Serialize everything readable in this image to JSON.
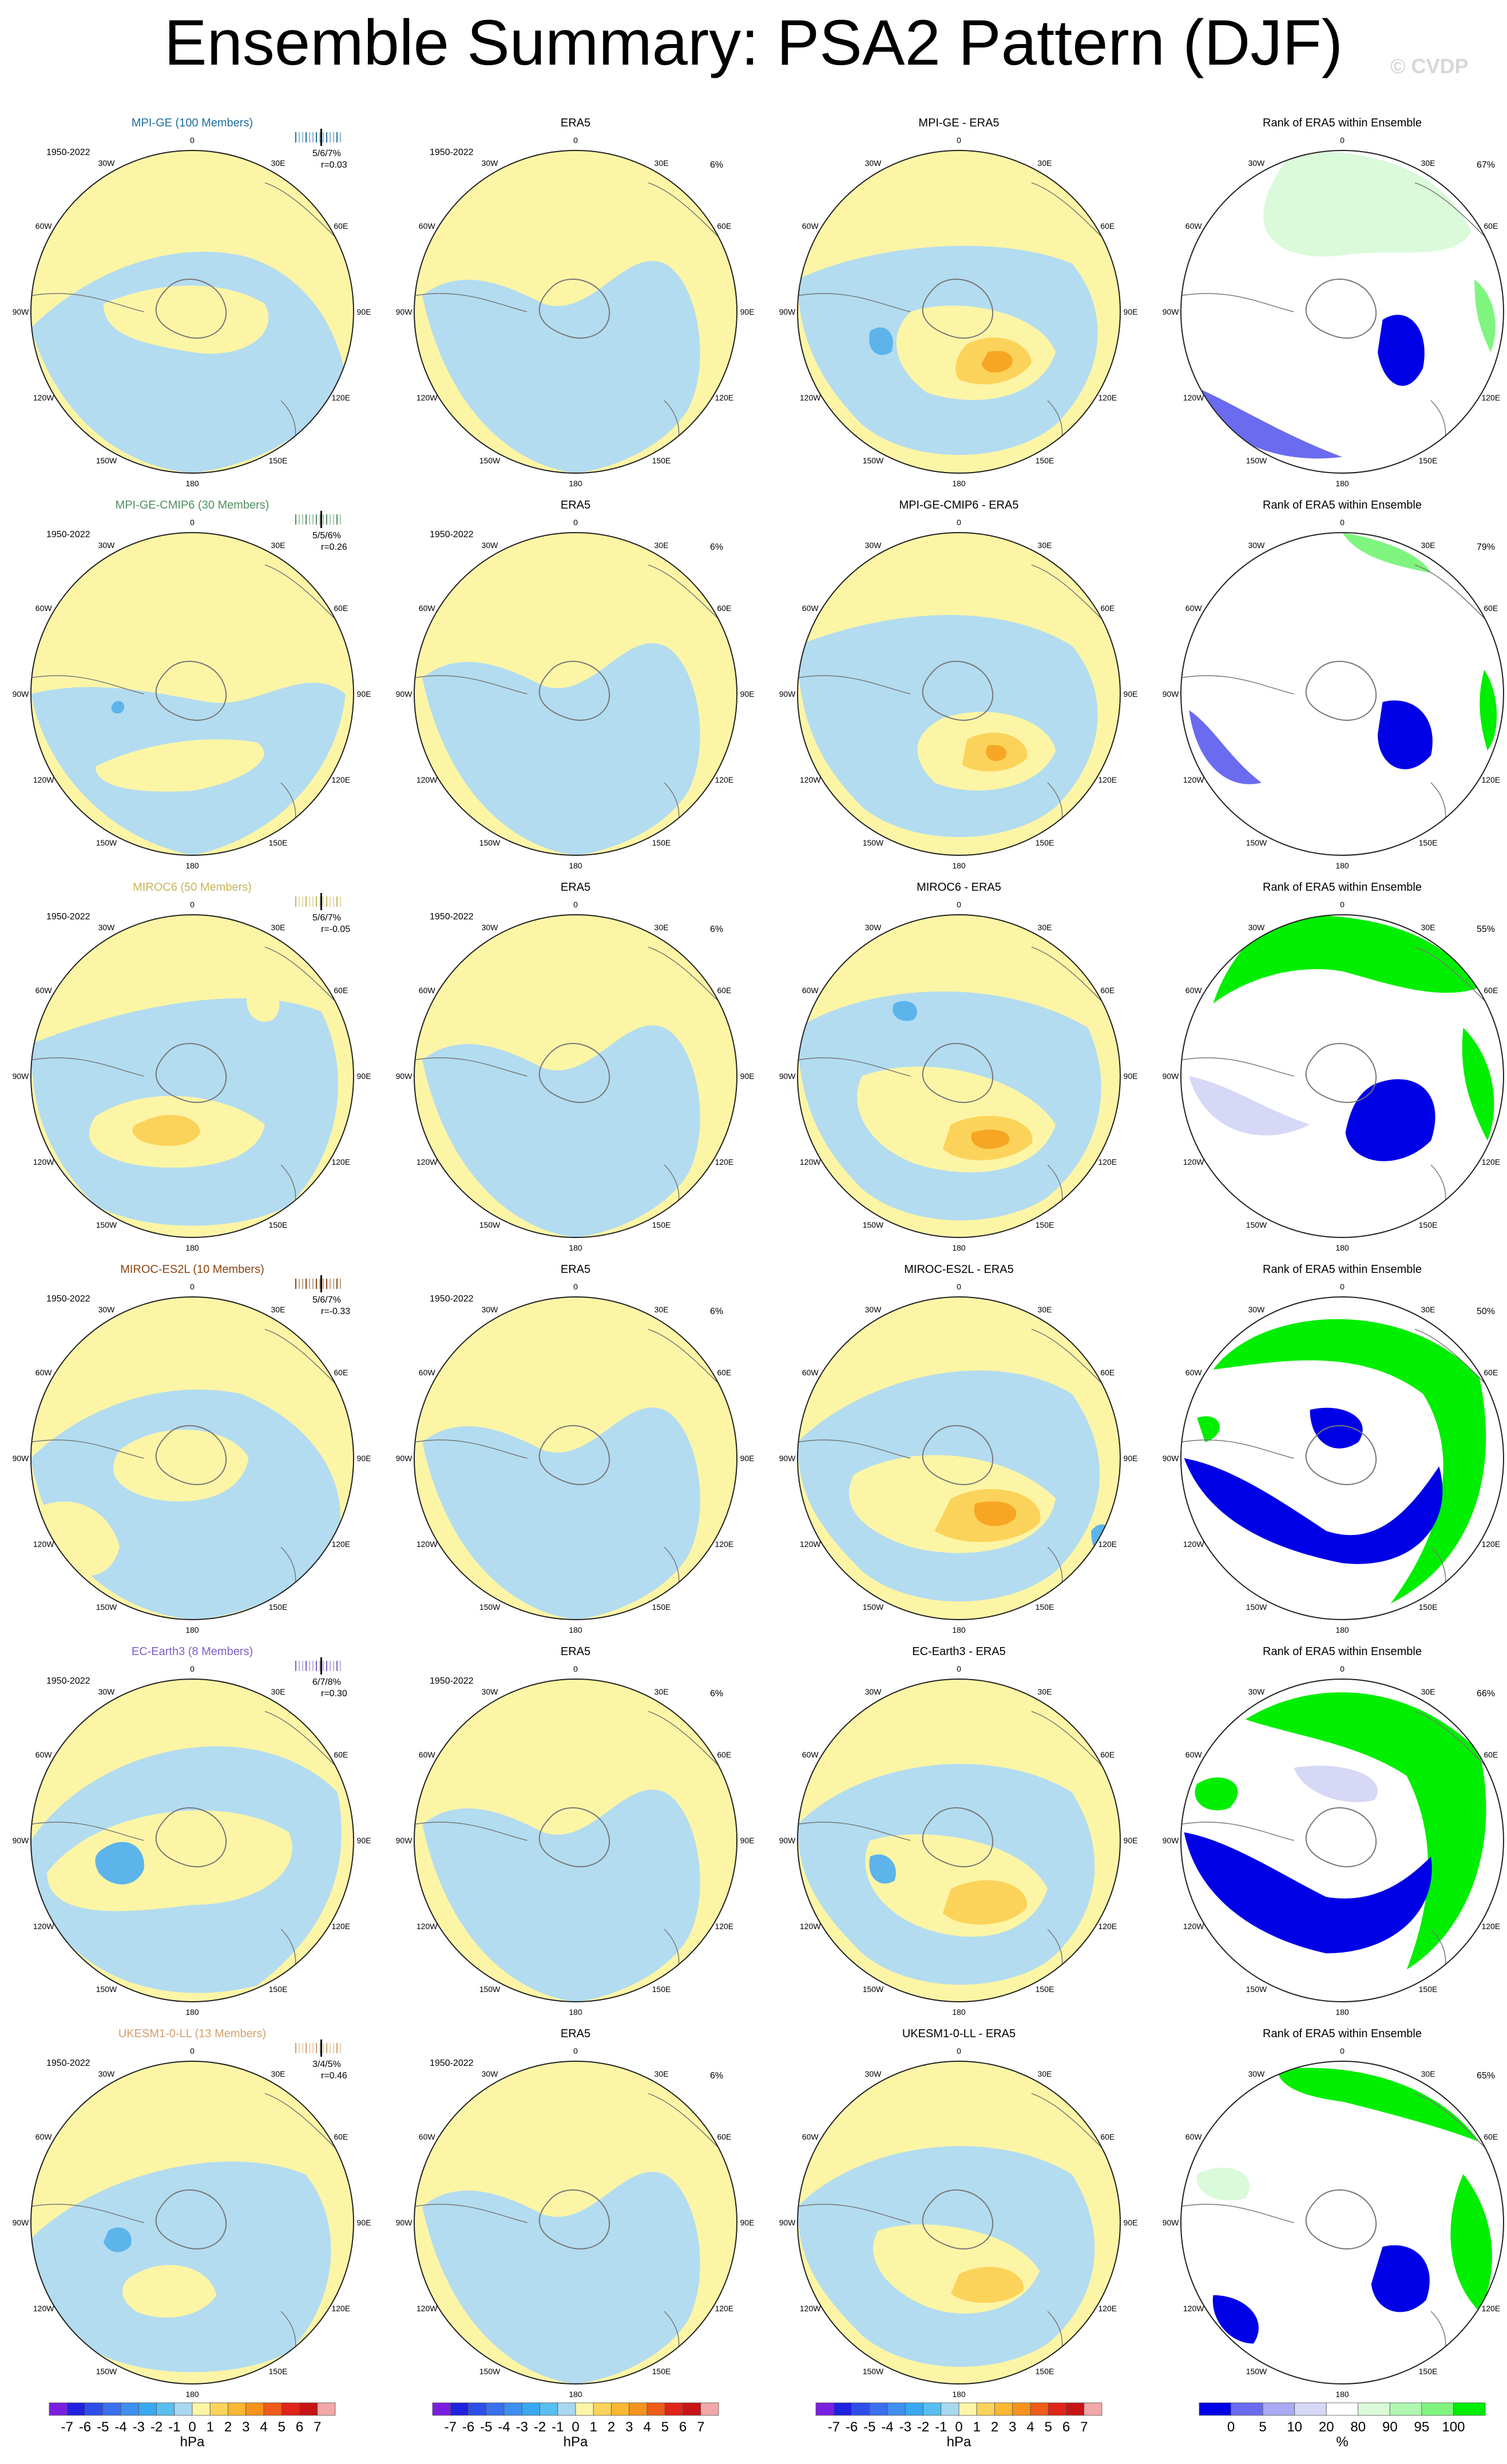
{
  "title": "Ensemble Summary: PSA2 Pattern (DJF)",
  "watermark": "© CVDP",
  "period": "1950-2022",
  "lon_labels": [
    "0",
    "30E",
    "60E",
    "90E",
    "120E",
    "150E",
    "180",
    "150W",
    "120W",
    "90W",
    "60W",
    "30W"
  ],
  "rows": [
    {
      "model": "MPI-GE (100 Members)",
      "color": "#1f6ea1",
      "pct_ens": "5/6/7%",
      "corr": "r=0.03",
      "diff_title": "MPI-GE - ERA5",
      "rank_pct": "67%",
      "ens": "m1",
      "diff": "d1",
      "rank": "k1"
    },
    {
      "model": "MPI-GE-CMIP6 (30 Members)",
      "color": "#4f8f5f",
      "pct_ens": "5/5/6%",
      "corr": "r=0.26",
      "diff_title": "MPI-GE-CMIP6 - ERA5",
      "rank_pct": "79%",
      "ens": "m2",
      "diff": "d2",
      "rank": "k2"
    },
    {
      "model": "MIROC6 (50 Members)",
      "color": "#c8b45a",
      "pct_ens": "5/6/7%",
      "corr": "r=-0.05",
      "diff_title": "MIROC6 - ERA5",
      "rank_pct": "55%",
      "ens": "m3",
      "diff": "d3",
      "rank": "k3"
    },
    {
      "model": "MIROC-ES2L (10 Members)",
      "color": "#8b4513",
      "pct_ens": "5/6/7%",
      "corr": "r=-0.33",
      "diff_title": "MIROC-ES2L - ERA5",
      "rank_pct": "50%",
      "ens": "m4",
      "diff": "d4",
      "rank": "k4"
    },
    {
      "model": "EC-Earth3 (8 Members)",
      "color": "#7b5fc8",
      "pct_ens": "6/7/8%",
      "corr": "r=0.30",
      "diff_title": "EC-Earth3 - ERA5",
      "rank_pct": "66%",
      "ens": "m5",
      "diff": "d5",
      "rank": "k5"
    },
    {
      "model": "UKESM1-0-LL (13 Members)",
      "color": "#d2a06e",
      "pct_ens": "3/4/5%",
      "corr": "r=0.46",
      "diff_title": "UKESM1-0-LL - ERA5",
      "rank_pct": "65%",
      "ens": "m6",
      "diff": "d6",
      "rank": "k6"
    }
  ],
  "era5": {
    "title": "ERA5",
    "pct": "6%"
  },
  "rank_title": "Rank of ERA5 within Ensemble",
  "colors": {
    "ocean_pos": "#fdf5a6",
    "ocean_neg": "#b3dcf0",
    "pos1": "#fcd35a",
    "pos2": "#f6a623",
    "neg1": "#5cb4ea",
    "neg2": "#1a7fd7",
    "rank_lo": "#0000e6",
    "rank_lo2": "#6b6bf0",
    "rank_lo3": "#d6d8f6",
    "rank_hi": "#00ee00",
    "rank_hi2": "#7ff57f",
    "rank_hi3": "#dafada"
  },
  "colorbar_hpa": {
    "labels": [
      "-7",
      "-6",
      "-5",
      "-4",
      "-3",
      "-2",
      "-1",
      "0",
      "1",
      "2",
      "3",
      "4",
      "5",
      "6",
      "7"
    ],
    "unit": "hPa",
    "colors": [
      "#7a1fe0",
      "#2020e0",
      "#2d4fe8",
      "#3a6fee",
      "#3e8ff0",
      "#38a8f0",
      "#58bff0",
      "#a8d8f0",
      "#fdf5a6",
      "#fcd35a",
      "#f9b732",
      "#f6931c",
      "#ef5b18",
      "#e02418",
      "#c81414",
      "#f2a8a8"
    ]
  },
  "colorbar_rank": {
    "labels": [
      "0",
      "5",
      "10",
      "20",
      "80",
      "90",
      "95",
      "100"
    ],
    "unit": "%",
    "colors": [
      "#0000e6",
      "#6b6bf0",
      "#a9aaf3",
      "#d6d8f6",
      "#ffffff",
      "#dafada",
      "#b0f7b0",
      "#7ff57f",
      "#00ee00"
    ]
  }
}
